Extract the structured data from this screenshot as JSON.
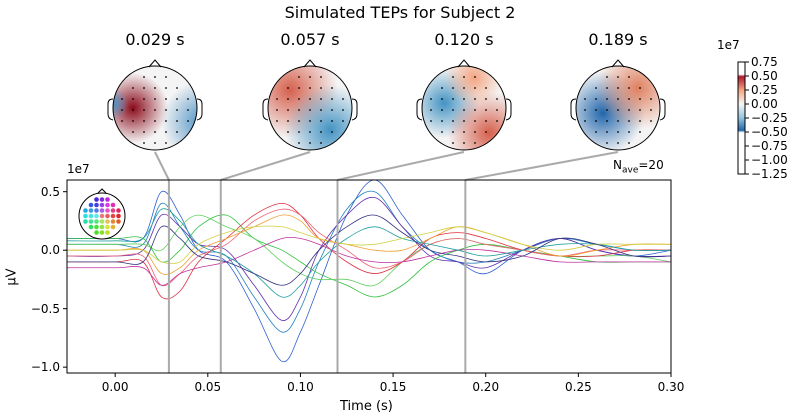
{
  "chart_data": {
    "type": "line",
    "title": "Simulated TEPs for Subject 2",
    "xlabel": "Time (s)",
    "ylabel": "µV",
    "y_scale_label": "1e7",
    "xlim": [
      -0.026,
      0.3
    ],
    "ylim": [
      -1.05,
      0.6
    ],
    "x_ticks": [
      "0.00",
      "0.05",
      "0.10",
      "0.15",
      "0.20",
      "0.25",
      "0.30"
    ],
    "x_tick_values": [
      0,
      0.05,
      0.1,
      0.15,
      0.2,
      0.25,
      0.3
    ],
    "y_ticks": [
      "0.5",
      "0.0",
      "−0.5",
      "−1.0"
    ],
    "y_tick_values": [
      0.5,
      0,
      -0.5,
      -1.0
    ],
    "nave_label": "N",
    "nave_sub": "ave",
    "nave_value": "=20",
    "grid": false,
    "topomap_times": [
      0.029,
      0.057,
      0.12,
      0.189
    ],
    "topomap_labels": [
      "0.029 s",
      "0.057 s",
      "0.120 s",
      "0.189 s"
    ],
    "colorbar": {
      "scale_label": "1e7",
      "ticks": [
        "0.75",
        "0.50",
        "0.25",
        "0.00",
        "−0.25",
        "−0.50",
        "−0.75",
        "−1.00",
        "−1.25"
      ],
      "tick_values": [
        0.75,
        0.5,
        0.25,
        0,
        -0.25,
        -0.5,
        -0.75,
        -1.0,
        -1.25
      ],
      "colormap": "RdBu_r"
    },
    "x": [
      -0.026,
      0,
      0.015,
      0.025,
      0.035,
      0.045,
      0.06,
      0.075,
      0.09,
      0.1,
      0.11,
      0.125,
      0.14,
      0.155,
      0.17,
      0.185,
      0.2,
      0.22,
      0.24,
      0.26,
      0.28,
      0.3
    ],
    "series": [
      {
        "color": "#3060d0",
        "values": [
          0.1,
          0.1,
          0.1,
          0.5,
          0.3,
          0.0,
          -0.1,
          -0.5,
          -0.95,
          -0.7,
          -0.3,
          0.3,
          0.6,
          0.3,
          0.0,
          -0.1,
          -0.2,
          0.0,
          0.1,
          0.0,
          -0.05,
          0
        ]
      },
      {
        "color": "#2080c0",
        "values": [
          0.05,
          0.05,
          0.05,
          0.4,
          0.2,
          0.0,
          -0.05,
          -0.4,
          -0.7,
          -0.5,
          -0.1,
          0.35,
          0.5,
          0.2,
          0.0,
          -0.1,
          -0.1,
          0.0,
          0.1,
          0.05,
          0.0,
          0
        ]
      },
      {
        "color": "#6030b0",
        "values": [
          -0.05,
          -0.05,
          0,
          0.3,
          0.2,
          0.05,
          0,
          -0.3,
          -0.6,
          -0.4,
          0,
          0.3,
          0.45,
          0.2,
          -0.05,
          -0.1,
          -0.15,
          0,
          0.1,
          0,
          -0.05,
          -0.05
        ]
      },
      {
        "color": "#30c040",
        "values": [
          0.1,
          0.1,
          0.1,
          -0.1,
          0.0,
          0.2,
          0.3,
          0.1,
          0.0,
          -0.1,
          -0.2,
          -0.3,
          -0.4,
          -0.3,
          -0.1,
          0.0,
          0.05,
          0.0,
          -0.05,
          -0.1,
          -0.1,
          -0.1
        ]
      },
      {
        "color": "#60d060",
        "values": [
          0.05,
          0.05,
          0.05,
          0,
          0.2,
          0.3,
          0.2,
          0.1,
          -0.1,
          -0.2,
          -0.25,
          -0.25,
          -0.3,
          -0.1,
          0.05,
          0.1,
          0.05,
          0,
          -0.05,
          -0.05,
          -0.05,
          -0.1
        ]
      },
      {
        "color": "#e03040",
        "values": [
          -0.1,
          -0.1,
          -0.1,
          -0.4,
          -0.35,
          -0.1,
          0.1,
          0.3,
          0.4,
          0.3,
          0.1,
          -0.1,
          -0.2,
          -0.1,
          0.1,
          0.15,
          0.1,
          0.0,
          -0.05,
          -0.05,
          0,
          0
        ]
      },
      {
        "color": "#f06070",
        "values": [
          -0.05,
          -0.05,
          -0.05,
          -0.3,
          -0.2,
          -0.05,
          0.05,
          0.25,
          0.35,
          0.3,
          0.15,
          0,
          -0.15,
          -0.1,
          0.05,
          0.1,
          0.05,
          0,
          -0.05,
          0,
          0,
          0
        ]
      },
      {
        "color": "#f0a030",
        "values": [
          0,
          0,
          0,
          -0.2,
          -0.15,
          0,
          0.1,
          0.2,
          0.3,
          0.25,
          0.1,
          0.05,
          0,
          0,
          0.1,
          0.2,
          0.15,
          0.05,
          -0.05,
          0,
          0.05,
          0.05
        ]
      },
      {
        "color": "#c030a0",
        "values": [
          -0.15,
          -0.15,
          -0.15,
          -0.3,
          -0.2,
          -0.15,
          -0.1,
          0,
          0.1,
          0.1,
          0.05,
          -0.05,
          -0.1,
          -0.1,
          -0.05,
          0,
          0,
          -0.05,
          -0.1,
          -0.1,
          -0.1,
          -0.1
        ]
      },
      {
        "color": "#20a0a0",
        "values": [
          0.08,
          0.08,
          0.1,
          0.35,
          0.25,
          0.05,
          -0.05,
          -0.2,
          -0.4,
          -0.3,
          -0.1,
          0.1,
          0.2,
          0.1,
          0.05,
          0,
          -0.05,
          0,
          0.05,
          0.05,
          0,
          0
        ]
      },
      {
        "color": "#d0d040",
        "values": [
          0,
          0,
          0,
          -0.1,
          -0.1,
          0.05,
          0.15,
          0.2,
          0.2,
          0.15,
          0.1,
          0.05,
          0.05,
          0.1,
          0.15,
          0.2,
          0.15,
          0.05,
          0,
          0.05,
          0.05,
          0.05
        ]
      },
      {
        "color": "#303080",
        "values": [
          -0.1,
          -0.1,
          -0.1,
          0.2,
          0.1,
          -0.05,
          -0.1,
          -0.2,
          -0.3,
          -0.2,
          0,
          0.2,
          0.3,
          0.15,
          0,
          -0.05,
          -0.1,
          -0.05,
          0.1,
          0.05,
          -0.05,
          -0.05
        ]
      }
    ]
  }
}
